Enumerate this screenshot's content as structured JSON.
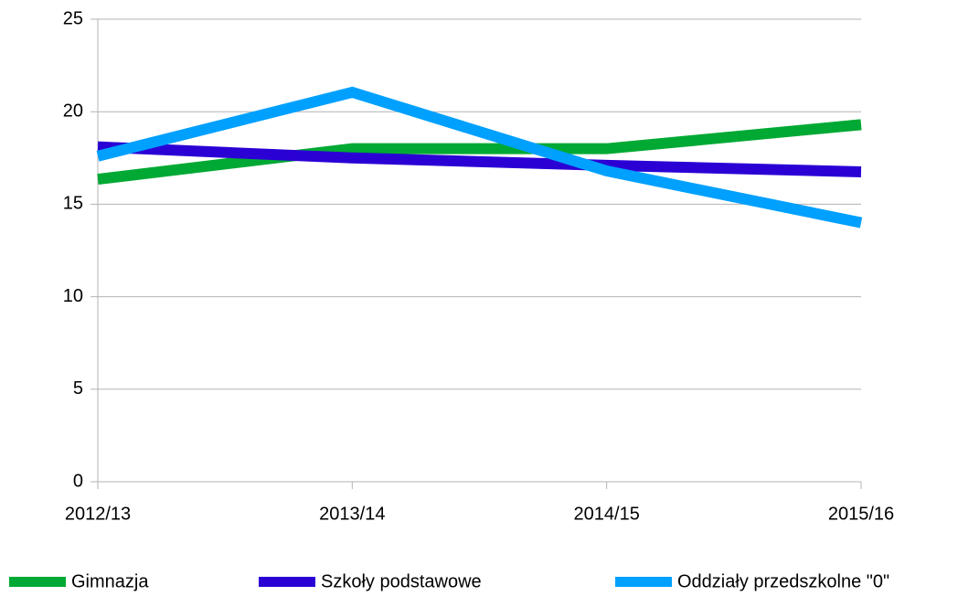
{
  "chart_data": {
    "type": "line",
    "categories": [
      "2012/13",
      "2013/14",
      "2014/15",
      "2015/16"
    ],
    "series": [
      {
        "name": "Gimnazja",
        "color": "#00a933",
        "values": [
          16.35,
          18.0,
          18.0,
          19.3
        ]
      },
      {
        "name": "Szkoły podstawowe",
        "color": "#2a00d5",
        "values": [
          18.1,
          17.5,
          17.1,
          16.75
        ]
      },
      {
        "name": "Oddziały przedszkolne \"0\"",
        "color": "#00a0ff",
        "values": [
          17.6,
          21.05,
          16.8,
          14.0
        ]
      }
    ],
    "ylim": [
      0,
      25
    ],
    "yticks": [
      0,
      5,
      10,
      15,
      20,
      25
    ],
    "grid": true,
    "legend": "bottom"
  }
}
